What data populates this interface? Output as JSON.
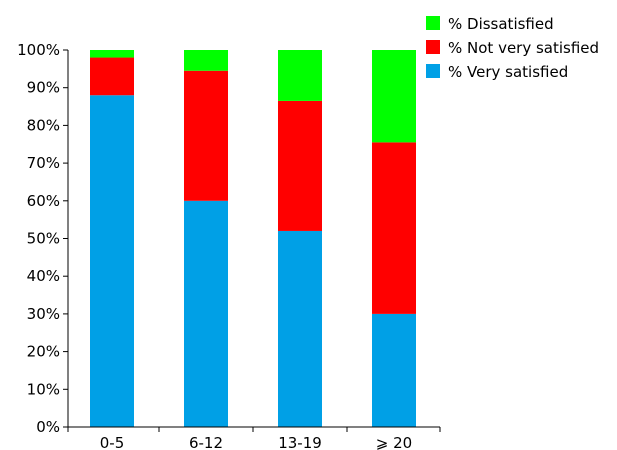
{
  "chart_data": {
    "type": "bar",
    "stacked": true,
    "categories": [
      "0-5",
      "6-12",
      "13-19",
      "⩾ 20"
    ],
    "series": [
      {
        "name": "% Very satisfied",
        "values": [
          88,
          60,
          52,
          30
        ],
        "color": "#00a0e6"
      },
      {
        "name": "% Not very satisfied",
        "values": [
          10,
          34.5,
          34.5,
          45.5
        ],
        "color": "#ff0000"
      },
      {
        "name": "% Dissatisfied",
        "values": [
          2,
          5.5,
          13.5,
          24.5
        ],
        "color": "#00ff00"
      }
    ],
    "yticks": [
      "0%",
      "10%",
      "20%",
      "30%",
      "40%",
      "50%",
      "60%",
      "70%",
      "80%",
      "90%",
      "100%"
    ],
    "ylim": [
      0,
      100
    ],
    "grid": false,
    "legend_position": "top-right",
    "legend_order": [
      "% Dissatisfied",
      "% Not very satisfied",
      "% Very satisfied"
    ]
  }
}
